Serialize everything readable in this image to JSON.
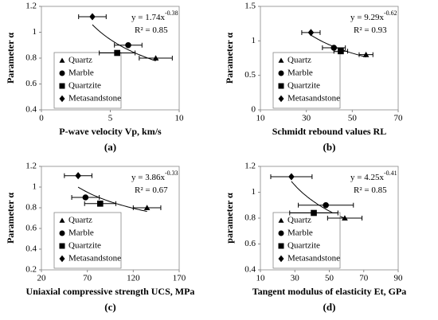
{
  "chart_data": [
    {
      "type": "scatter",
      "panel_label": "(a)",
      "x_label": "P-wave velocity Vp, km/s",
      "y_label": "Parameter α",
      "xlim": [
        0,
        10
      ],
      "xticks": [
        0,
        5,
        10
      ],
      "ylim": [
        0.4,
        1.2
      ],
      "yticks": [
        0.4,
        0.6,
        0.8,
        1,
        1.2
      ],
      "fit": {
        "prefix": "y = ",
        "coefficient": 1.74,
        "variable": "x",
        "exponent": -0.38,
        "r2_prefix": "R² = ",
        "r2": 0.85
      },
      "series": [
        {
          "name": "Quartz",
          "marker": "triangle",
          "color": "#000000",
          "x": [
            8.3
          ],
          "values": [
            0.8
          ],
          "xerr": [
            1.2
          ]
        },
        {
          "name": "Marble",
          "marker": "circle",
          "color": "#000000",
          "x": [
            6.3
          ],
          "values": [
            0.9
          ],
          "xerr": [
            1.0
          ]
        },
        {
          "name": "Quartzite",
          "marker": "square",
          "color": "#000000",
          "x": [
            5.5
          ],
          "values": [
            0.84
          ],
          "xerr": [
            1.3
          ]
        },
        {
          "name": "Metasandstone",
          "marker": "diamond",
          "color": "#000000",
          "x": [
            3.7
          ],
          "values": [
            1.12
          ],
          "xerr": [
            1.0
          ]
        }
      ]
    },
    {
      "type": "scatter",
      "panel_label": "(b)",
      "x_label": "Schmidt rebound values RL",
      "y_label": "Parameter α",
      "xlim": [
        10,
        70
      ],
      "xticks": [
        10,
        30,
        50,
        70
      ],
      "ylim": [
        0,
        1.5
      ],
      "yticks": [
        0,
        0.5,
        1,
        1.5
      ],
      "fit": {
        "prefix": "y = ",
        "coefficient": 9.29,
        "variable": "x",
        "exponent": -0.62,
        "r2_prefix": "R² = ",
        "r2": 0.93
      },
      "series": [
        {
          "name": "Quartz",
          "marker": "triangle",
          "color": "#000000",
          "x": [
            56
          ],
          "values": [
            0.8
          ],
          "xerr": [
            3
          ]
        },
        {
          "name": "Marble",
          "marker": "circle",
          "color": "#000000",
          "x": [
            42
          ],
          "values": [
            0.9
          ],
          "xerr": [
            5
          ]
        },
        {
          "name": "Quartzite",
          "marker": "square",
          "color": "#000000",
          "x": [
            45
          ],
          "values": [
            0.85
          ],
          "xerr": [
            3
          ]
        },
        {
          "name": "Metasandstone",
          "marker": "diamond",
          "color": "#000000",
          "x": [
            32
          ],
          "values": [
            1.12
          ],
          "xerr": [
            4
          ]
        }
      ]
    },
    {
      "type": "scatter",
      "panel_label": "(c)",
      "x_label": "Uniaxial compressive strength UCS, MPa",
      "y_label": "Parameter α",
      "xlim": [
        20,
        170
      ],
      "xticks": [
        20,
        70,
        120,
        170
      ],
      "ylim": [
        0.2,
        1.2
      ],
      "yticks": [
        0.2,
        0.4,
        0.6,
        0.8,
        1,
        1.2
      ],
      "fit": {
        "prefix": "y = ",
        "coefficient": 3.86,
        "variable": "x",
        "exponent": -0.33,
        "r2_prefix": "R² = ",
        "r2": 0.67
      },
      "series": [
        {
          "name": "Quartz",
          "marker": "triangle",
          "color": "#000000",
          "x": [
            135
          ],
          "values": [
            0.8
          ],
          "xerr": [
            15
          ]
        },
        {
          "name": "Marble",
          "marker": "circle",
          "color": "#000000",
          "x": [
            68
          ],
          "values": [
            0.9
          ],
          "xerr": [
            15
          ]
        },
        {
          "name": "Quartzite",
          "marker": "square",
          "color": "#000000",
          "x": [
            84
          ],
          "values": [
            0.84
          ],
          "xerr": [
            17
          ]
        },
        {
          "name": "Metasandstone",
          "marker": "diamond",
          "color": "#000000",
          "x": [
            60
          ],
          "values": [
            1.11
          ],
          "xerr": [
            15
          ]
        }
      ]
    },
    {
      "type": "scatter",
      "panel_label": "(d)",
      "x_label": "Tangent modulus of elasticity Et, GPa",
      "y_label": "parameter α",
      "xlim": [
        10,
        90
      ],
      "xticks": [
        10,
        30,
        50,
        70,
        90
      ],
      "ylim": [
        0.4,
        1.2
      ],
      "yticks": [
        0.4,
        0.6,
        0.8,
        1,
        1.2
      ],
      "fit": {
        "prefix": "y = ",
        "coefficient": 4.25,
        "variable": "x",
        "exponent": -0.41,
        "r2_prefix": "R² = ",
        "r2": 0.85
      },
      "series": [
        {
          "name": "Quartz",
          "marker": "triangle",
          "color": "#000000",
          "x": [
            59
          ],
          "values": [
            0.8
          ],
          "xerr": [
            10
          ]
        },
        {
          "name": "Marble",
          "marker": "circle",
          "color": "#000000",
          "x": [
            48
          ],
          "values": [
            0.9
          ],
          "xerr": [
            16
          ]
        },
        {
          "name": "Quartzite",
          "marker": "square",
          "color": "#000000",
          "x": [
            41
          ],
          "values": [
            0.84
          ],
          "xerr": [
            14
          ]
        },
        {
          "name": "Metasandstone",
          "marker": "diamond",
          "color": "#000000",
          "x": [
            28
          ],
          "values": [
            1.12
          ],
          "xerr": [
            12
          ]
        }
      ]
    }
  ]
}
